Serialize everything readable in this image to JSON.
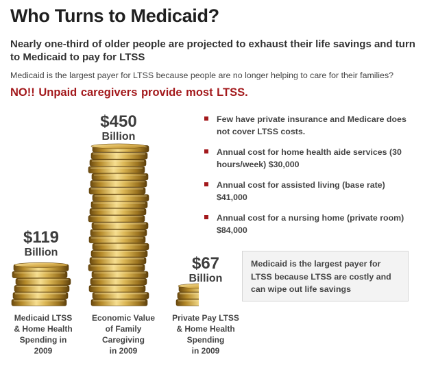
{
  "header": {
    "title": "Who Turns to Medicaid?",
    "subtitle": "Nearly one-third of older people are projected to exhaust their life savings and turn to Medicaid to pay for LTSS",
    "question": "Medicaid is the largest payer for LTSS because people are no longer helping to care for their families?",
    "answer": "NO!!  Unpaid caregivers provide most LTSS."
  },
  "chart_data": {
    "type": "bar",
    "categories": [
      "Medicaid LTSS & Home Health Spending in 2009",
      "Economic Value of Family Caregiving in 2009",
      "Private Pay LTSS & Home Health Spending in 2009"
    ],
    "values": [
      119,
      450,
      67
    ],
    "unit": "Billion",
    "value_labels": [
      {
        "amount": "$119",
        "unit": "Billion"
      },
      {
        "amount": "$450",
        "unit": "Billion"
      },
      {
        "amount": "$67",
        "unit": "Billion"
      }
    ],
    "category_labels": [
      [
        "Medicaid LTSS",
        "& Home Health",
        "Spending in",
        "2009"
      ],
      [
        "Economic Value",
        "of Family",
        "Caregiving",
        "in 2009"
      ],
      [
        "Private Pay LTSS",
        "& Home Health",
        "Spending",
        "in 2009"
      ]
    ],
    "mark_style": "stacked-gold-coins",
    "colors": {
      "coin_light": "#f3d682",
      "coin_mid": "#c9a23c",
      "coin_dark": "#7e5b14"
    }
  },
  "bullets": [
    "Few have private insurance and Medicare does not cover LTSS costs.",
    "Annual cost for home health aide services (30 hours/week) $30,000",
    "Annual cost for assisted living (base rate) $41,000",
    "Annual cost for a nursing home (private room) $84,000"
  ],
  "callout": "Medicaid is the largest payer for LTSS because LTSS are costly and can wipe out life savings",
  "colors": {
    "accent": "#a3191c",
    "text": "#333333",
    "callout_bg": "#f3f3f3"
  }
}
